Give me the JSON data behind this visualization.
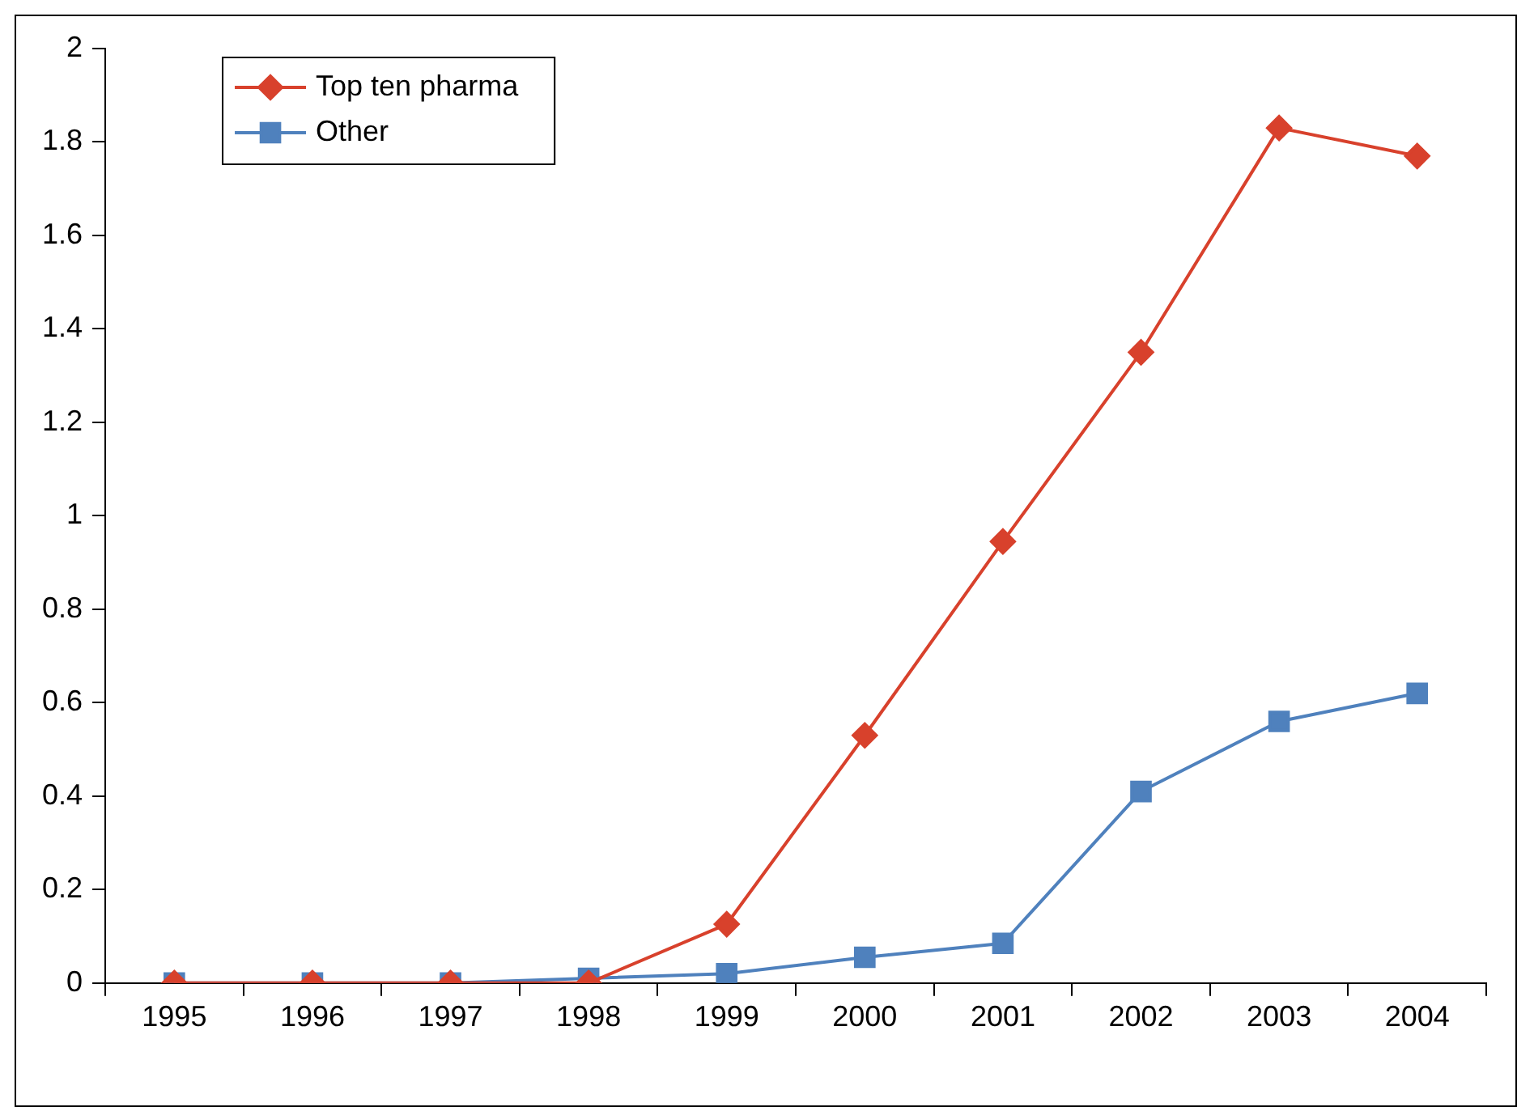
{
  "chart_data": {
    "type": "line",
    "categories": [
      "1995",
      "1996",
      "1997",
      "1998",
      "1999",
      "2000",
      "2001",
      "2002",
      "2003",
      "2004"
    ],
    "series": [
      {
        "name": "Top ten pharma",
        "color": "#d8412c",
        "marker": "diamond",
        "values": [
          0,
          0,
          0,
          0,
          0.126,
          0.53,
          0.945,
          1.35,
          1.83,
          1.77
        ]
      },
      {
        "name": "Other",
        "color": "#4f81bd",
        "marker": "square",
        "values": [
          0,
          0,
          0,
          0.01,
          0.02,
          0.055,
          0.085,
          0.41,
          0.56,
          0.62
        ]
      }
    ],
    "ylim": [
      0,
      2
    ],
    "yticks": [
      0,
      0.2,
      0.4,
      0.6,
      0.8,
      1,
      1.2,
      1.4,
      1.6,
      1.8,
      2
    ],
    "grid": false,
    "legend": "top left",
    "line_style": "solid"
  }
}
